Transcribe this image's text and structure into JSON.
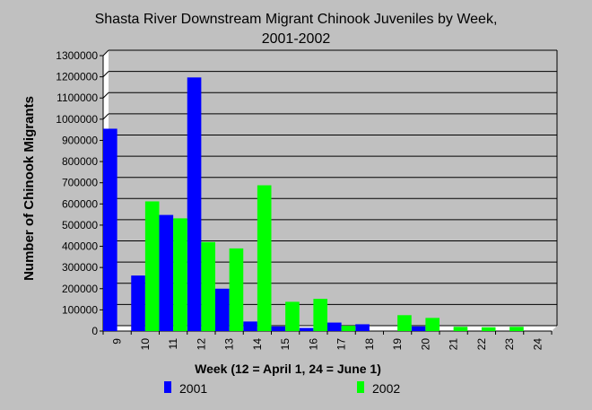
{
  "chart_data": {
    "type": "bar",
    "title_line1": "Shasta River Downstream Migrant Chinook Juveniles by Week,",
    "title_line2": "2001-2002",
    "xlabel": "Week (12 = April 1, 24 = June 1)",
    "ylabel": "Number of Chinook Migrants",
    "ylim": [
      0,
      1300000
    ],
    "yticks": [
      0,
      100000,
      200000,
      300000,
      400000,
      500000,
      600000,
      700000,
      800000,
      900000,
      1000000,
      1100000,
      1200000,
      1300000
    ],
    "categories": [
      "9",
      "10",
      "11",
      "12",
      "13",
      "14",
      "15",
      "16",
      "17",
      "18",
      "19",
      "20",
      "21",
      "22",
      "23",
      "24"
    ],
    "grid": true,
    "legend_position": "bottom",
    "series": [
      {
        "name": "2001",
        "color": "#0000ff",
        "values": [
          955000,
          262000,
          548000,
          1197000,
          200000,
          45000,
          22000,
          15000,
          40000,
          32000,
          0,
          22000,
          0,
          0,
          0,
          0
        ]
      },
      {
        "name": "2002",
        "color": "#00ff00",
        "values": [
          0,
          612000,
          532000,
          420000,
          390000,
          688000,
          138000,
          152000,
          25000,
          0,
          75000,
          62000,
          20000,
          18000,
          20000,
          0
        ]
      }
    ]
  }
}
